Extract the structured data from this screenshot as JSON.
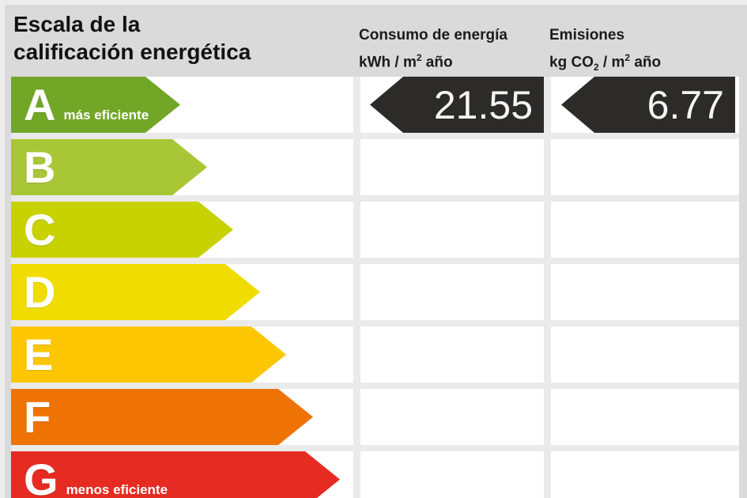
{
  "title": {
    "line1": "Escala de la",
    "line2": "calificación energética"
  },
  "columns": {
    "consumption": {
      "title": "Consumo de energía",
      "unit_base": "kWh / m",
      "unit_sup": "2",
      "unit_rest": " año"
    },
    "emissions": {
      "title": "Emisiones",
      "unit_base1": "kg CO",
      "unit_sub": "2",
      "unit_base2": " / m",
      "unit_sup": "2",
      "unit_rest": " año"
    }
  },
  "scale": [
    {
      "grade": "A",
      "qualifier": "más eficiente",
      "color": "#72a627",
      "arrow_width": 214
    },
    {
      "grade": "B",
      "qualifier": "",
      "color": "#a9c636",
      "arrow_width": 248
    },
    {
      "grade": "C",
      "qualifier": "",
      "color": "#c8d200",
      "arrow_width": 281
    },
    {
      "grade": "D",
      "qualifier": "",
      "color": "#f1dc00",
      "arrow_width": 315
    },
    {
      "grade": "E",
      "qualifier": "",
      "color": "#fcc602",
      "arrow_width": 348
    },
    {
      "grade": "F",
      "qualifier": "",
      "color": "#ee7304",
      "arrow_width": 382
    },
    {
      "grade": "G",
      "qualifier": "menos eficiente",
      "color": "#e52b22",
      "arrow_width": 416
    }
  ],
  "rating": {
    "grade": "A",
    "consumption_value": "21.55",
    "emissions_value": "6.77",
    "arrow_color": "#2d2b2a"
  },
  "chart_data": {
    "type": "table",
    "title": "Escala de la calificación energética",
    "categories": [
      "A",
      "B",
      "C",
      "D",
      "E",
      "F",
      "G"
    ],
    "rated_grade": "A",
    "series": [
      {
        "name": "Consumo de energía kWh/m2 año",
        "values": [
          21.55,
          null,
          null,
          null,
          null,
          null,
          null
        ]
      },
      {
        "name": "Emisiones kg CO2/m2 año",
        "values": [
          6.77,
          null,
          null,
          null,
          null,
          null,
          null
        ]
      }
    ],
    "annotations": [
      "A = más eficiente",
      "G = menos eficiente"
    ],
    "scale_colors": [
      "#72a627",
      "#a9c636",
      "#c8d200",
      "#f1dc00",
      "#fcc602",
      "#ee7304",
      "#e52b22"
    ],
    "legend_position": "none",
    "grid": false
  }
}
